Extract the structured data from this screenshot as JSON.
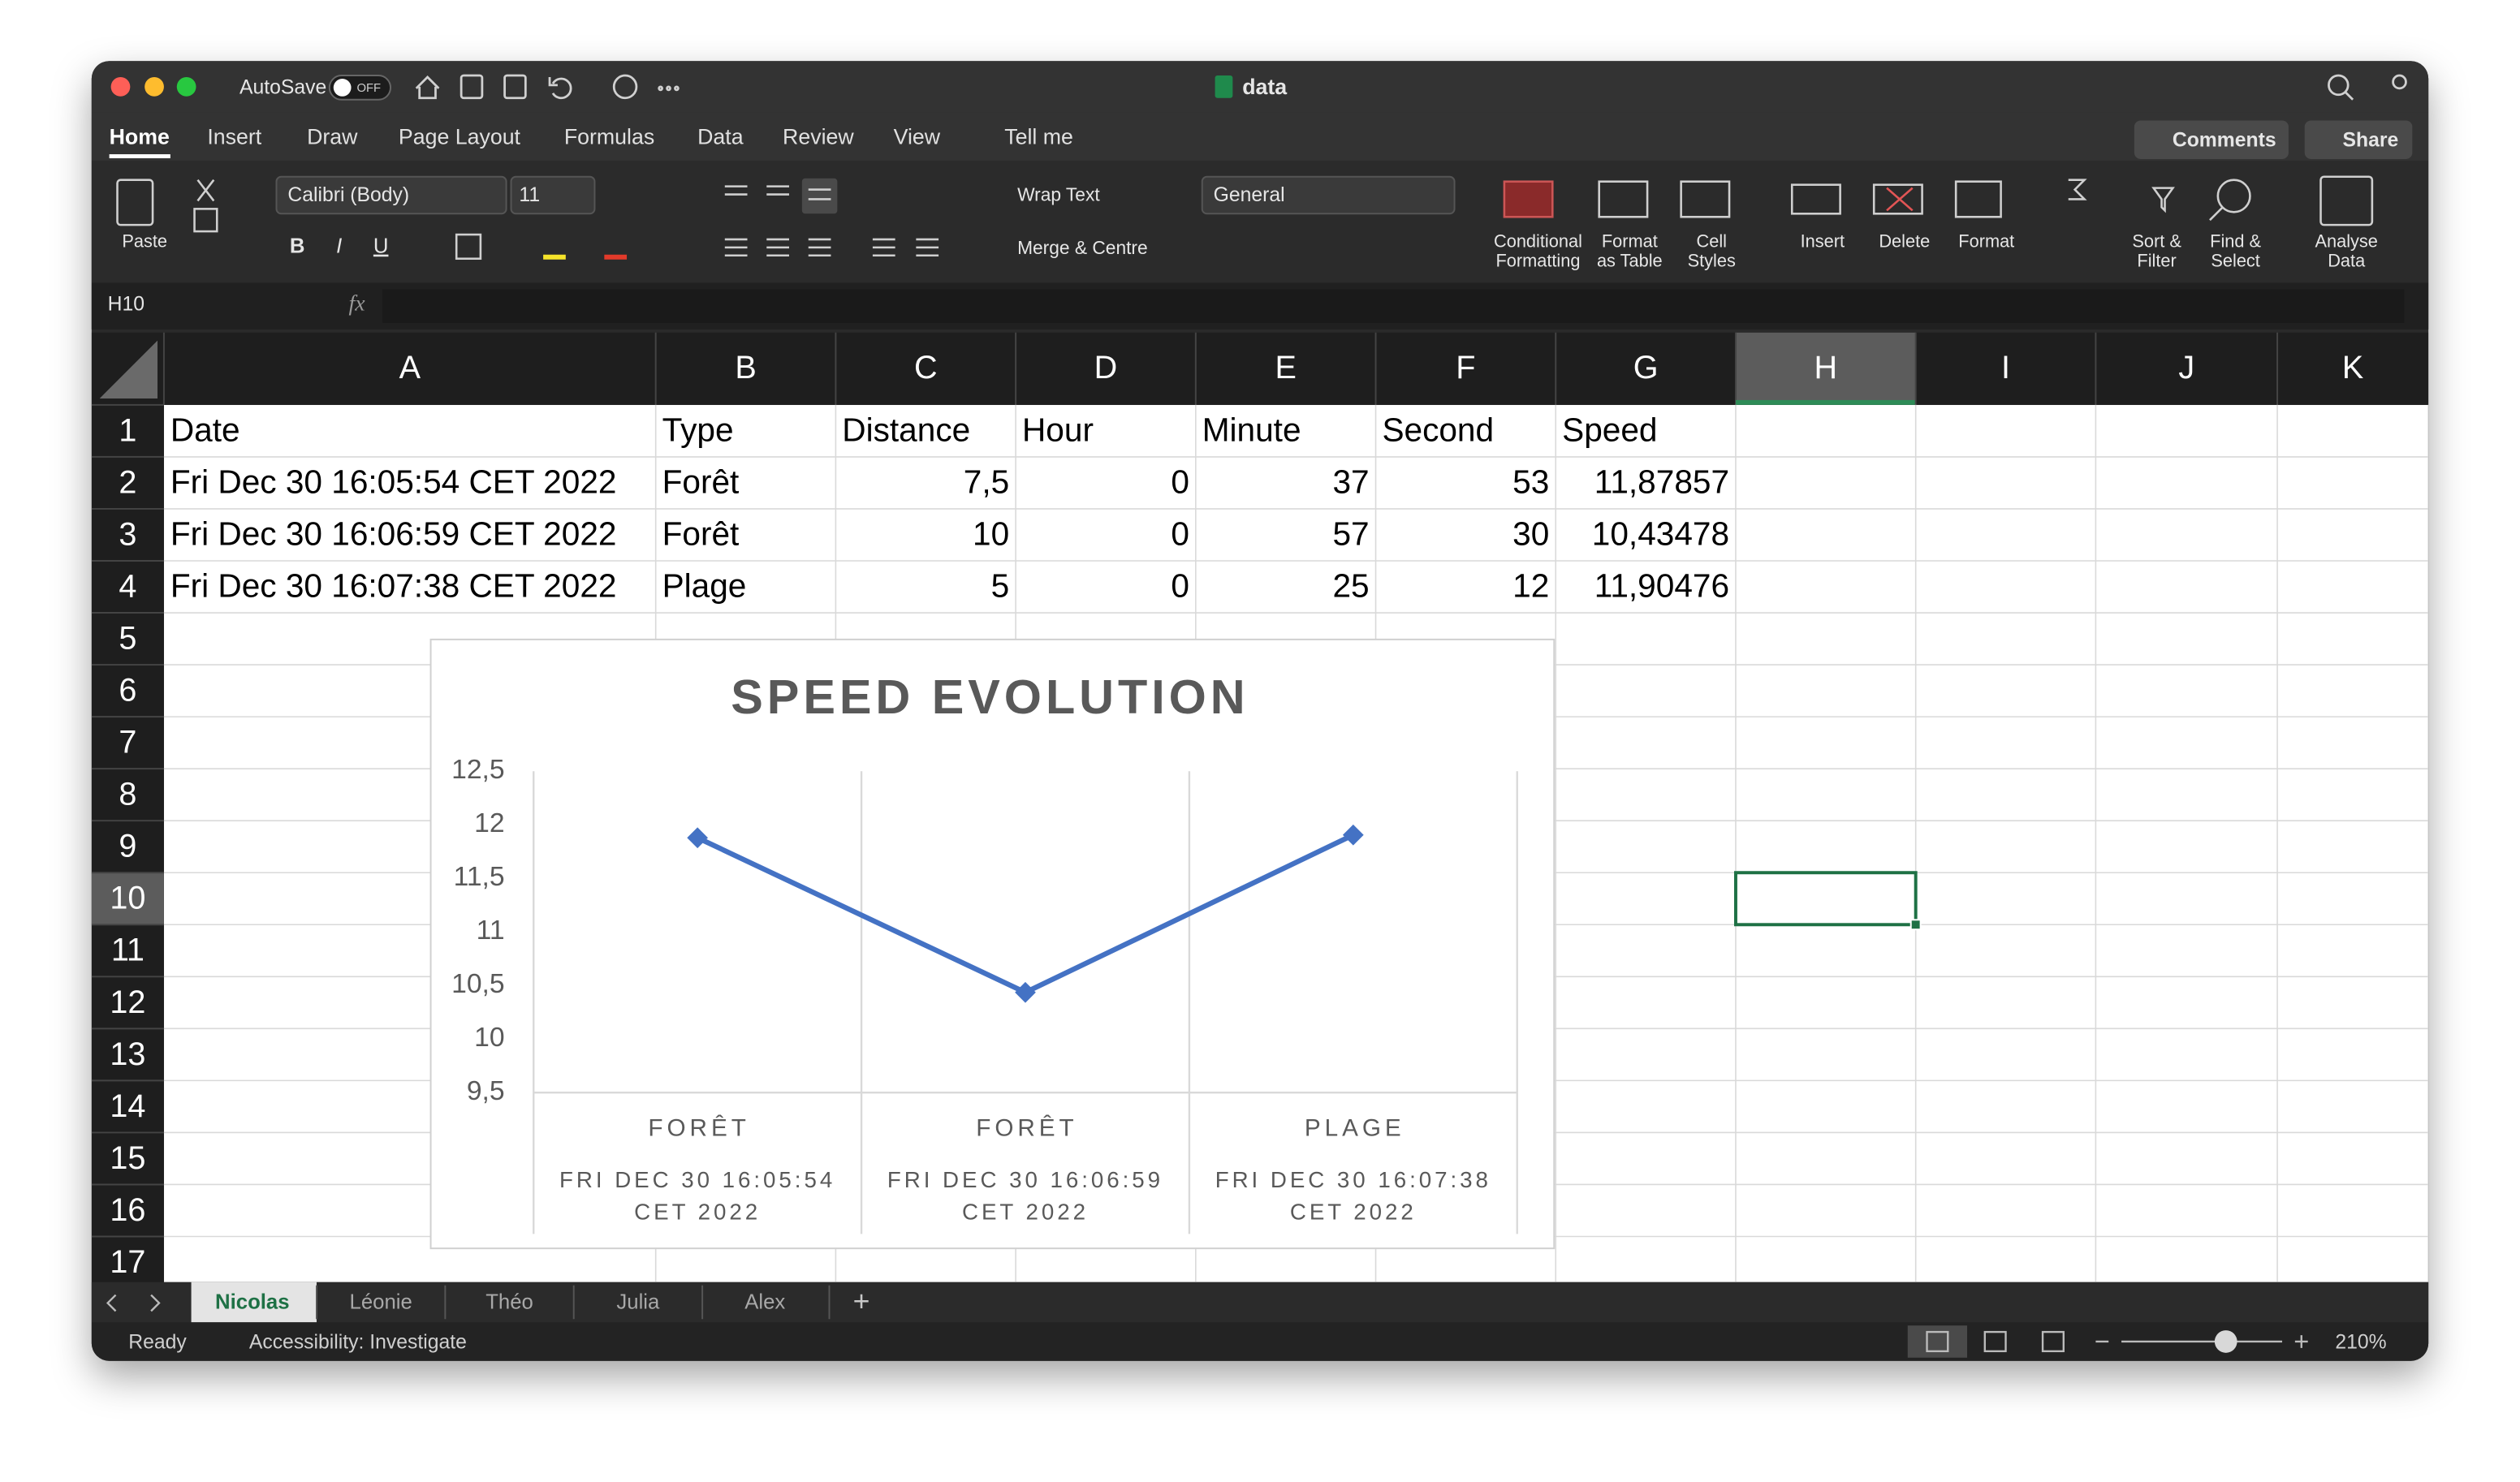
{
  "window": {
    "autosave": "AutoSave",
    "autosave_state": "OFF",
    "file_name": "data"
  },
  "ribbon_tabs": [
    "Home",
    "Insert",
    "Draw",
    "Page Layout",
    "Formulas",
    "Data",
    "Review",
    "View",
    "Tell me"
  ],
  "top_buttons": [
    "Comments",
    "Share"
  ],
  "ribbon": {
    "font_name": "Calibri (Body)",
    "font_size": "11",
    "number_format": "General",
    "wrap_text": "Wrap Text",
    "merge": "Merge & Centre",
    "format_letters": [
      "B",
      "I",
      "U"
    ],
    "buttons": [
      [
        "Paste"
      ],
      [
        "Conditional",
        "Formatting"
      ],
      [
        "Format",
        "as Table"
      ],
      [
        "Cell",
        "Styles"
      ],
      [
        "Insert"
      ],
      [
        "Delete"
      ],
      [
        "Format"
      ],
      [
        "Sort &",
        "Filter"
      ],
      [
        "Find &",
        "Select"
      ],
      [
        "Analyse",
        "Data"
      ]
    ]
  },
  "formula_bar": {
    "name_box": "H10",
    "fx": "fx"
  },
  "sheet": {
    "columns": [
      "A",
      "B",
      "C",
      "D",
      "E",
      "F",
      "G",
      "H",
      "I",
      "J",
      "K"
    ],
    "rows": [
      1,
      2,
      3,
      4,
      5,
      6,
      7,
      8,
      9,
      10,
      11,
      12,
      13,
      14,
      15,
      16,
      17
    ],
    "cells": [
      [
        "Date",
        "Type",
        "Distance",
        "Hour",
        "Minute",
        "Second",
        "Speed"
      ],
      [
        "Fri Dec 30 16:05:54 CET 2022",
        "Forêt",
        "7,5",
        "0",
        "37",
        "53",
        "11,87857"
      ],
      [
        "Fri Dec 30 16:06:59 CET 2022",
        "Forêt",
        "10",
        "0",
        "57",
        "30",
        "10,43478"
      ],
      [
        "Fri Dec 30 16:07:38 CET 2022",
        "Plage",
        "5",
        "0",
        "25",
        "12",
        "11,90476"
      ]
    ]
  },
  "sheet_tabs": [
    "Nicolas",
    "Léonie",
    "Théo",
    "Julia",
    "Alex"
  ],
  "add_sheet": "+",
  "status": {
    "ready": "Ready",
    "accessibility": "Accessibility: Investigate",
    "zoom": "210%"
  },
  "chart_data": {
    "type": "line",
    "title": "SPEED EVOLUTION",
    "categories": [
      "FORÊT",
      "FORÊT",
      "PLAGE"
    ],
    "category_groups": [
      "FRI DEC 30 16:05:54 CET 2022",
      "FRI DEC 30 16:06:59 CET 2022",
      "FRI DEC 30 16:07:38 CET 2022"
    ],
    "values": [
      11.87857,
      10.43478,
      11.90476
    ],
    "color": "#4472c4",
    "marker": "diamond",
    "ylim": [
      9.5,
      12.5
    ],
    "yticks": [
      {
        "value": 9.5,
        "label": "9,5"
      },
      10,
      {
        "value": 10.5,
        "label": "10,5"
      },
      11,
      {
        "value": 11.5,
        "label": "11,5"
      },
      12,
      {
        "value": 12.5,
        "label": "12,5"
      }
    ]
  }
}
